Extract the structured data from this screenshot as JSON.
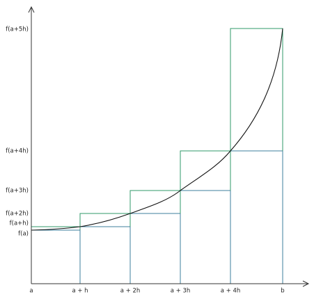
{
  "x_labels": [
    "a",
    "a + h",
    "a + 2h",
    "a + 3h",
    "a + 4h",
    "b"
  ],
  "y_labels": [
    "f(a+5h)",
    "f(a+4h)",
    "f(a+3h)",
    "f(a+2h)",
    "f(a+h)",
    "f(a)"
  ]
}
